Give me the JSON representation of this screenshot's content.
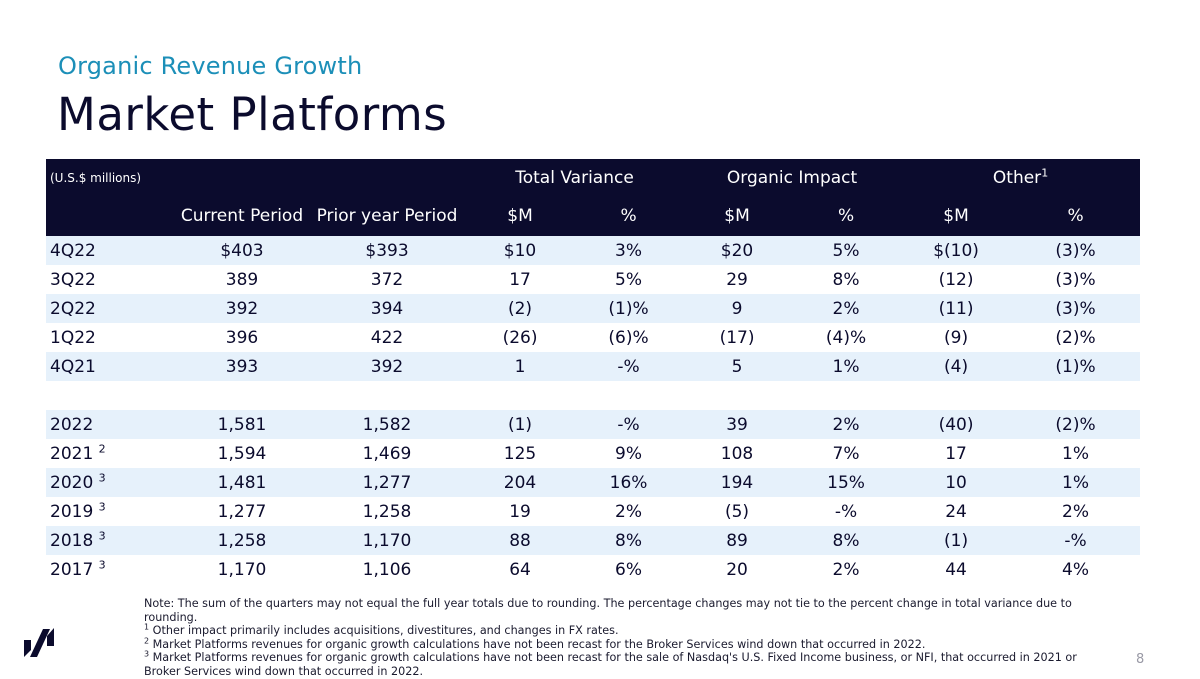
{
  "header": {
    "subtitle": "Organic Revenue Growth",
    "title": "Market Platforms"
  },
  "table": {
    "units": "(U.S.$ millions)",
    "groups": {
      "total_variance": "Total Variance",
      "organic_impact": "Organic Impact",
      "other": "Other",
      "other_sup": "1"
    },
    "subheaders": [
      "Current Period",
      "Prior year Period",
      "$M",
      "%",
      "$M",
      "%",
      "$M",
      "%"
    ],
    "quarterly_rows": [
      {
        "label": "4Q22",
        "sup": "",
        "cells": [
          "$403",
          "$393",
          "$10",
          "3%",
          "$20",
          "5%",
          "$(10)",
          "(3)%"
        ]
      },
      {
        "label": "3Q22",
        "sup": "",
        "cells": [
          "389",
          "372",
          "17",
          "5%",
          "29",
          "8%",
          "(12)",
          "(3)%"
        ]
      },
      {
        "label": "2Q22",
        "sup": "",
        "cells": [
          "392",
          "394",
          "(2)",
          "(1)%",
          "9",
          "2%",
          "(11)",
          "(3)%"
        ]
      },
      {
        "label": "1Q22",
        "sup": "",
        "cells": [
          "396",
          "422",
          "(26)",
          "(6)%",
          "(17)",
          "(4)%",
          "(9)",
          "(2)%"
        ]
      },
      {
        "label": "4Q21",
        "sup": "",
        "cells": [
          "393",
          "392",
          "1",
          "-%",
          "5",
          "1%",
          "(4)",
          "(1)%"
        ]
      }
    ],
    "annual_rows": [
      {
        "label": "2022",
        "sup": "",
        "cells": [
          "1,581",
          "1,582",
          "(1)",
          "-%",
          "39",
          "2%",
          "(40)",
          "(2)%"
        ]
      },
      {
        "label": "2021",
        "sup": "2",
        "cells": [
          "1,594",
          "1,469",
          "125",
          "9%",
          "108",
          "7%",
          "17",
          "1%"
        ]
      },
      {
        "label": "2020",
        "sup": "3",
        "cells": [
          "1,481",
          "1,277",
          "204",
          "16%",
          "194",
          "15%",
          "10",
          "1%"
        ]
      },
      {
        "label": "2019",
        "sup": "3",
        "cells": [
          "1,277",
          "1,258",
          "19",
          "2%",
          "(5)",
          "-%",
          "24",
          "2%"
        ]
      },
      {
        "label": "2018",
        "sup": "3",
        "cells": [
          "1,258",
          "1,170",
          "88",
          "8%",
          "89",
          "8%",
          "(1)",
          "-%"
        ]
      },
      {
        "label": "2017",
        "sup": "3",
        "cells": [
          "1,170",
          "1,106",
          "64",
          "6%",
          "20",
          "2%",
          "44",
          "4%"
        ]
      }
    ]
  },
  "footnotes": {
    "note": "Note: The sum of the quarters may not equal the full year totals due to rounding. The percentage changes may not tie to the percent change in total variance due to rounding.",
    "fn1_mark": "1",
    "fn1": "Other impact primarily includes acquisitions, divestitures, and changes in FX rates.",
    "fn2_mark": "2",
    "fn2": "Market Platforms revenues for organic growth calculations have not been recast for the Broker Services wind down that occurred in 2022.",
    "fn3_mark": "3",
    "fn3": "Market Platforms revenues for organic growth calculations have not been recast for the sale of Nasdaq's U.S. Fixed Income business, or NFI,  that occurred in 2021 or Broker Services wind down that occurred in 2022."
  },
  "page_number": "8",
  "logo_icon": "nasdaq-logo-icon",
  "colors": {
    "navy": "#0b0b2d",
    "accent_blue": "#1c8fb8",
    "row_shade": "#e6f1fb"
  }
}
